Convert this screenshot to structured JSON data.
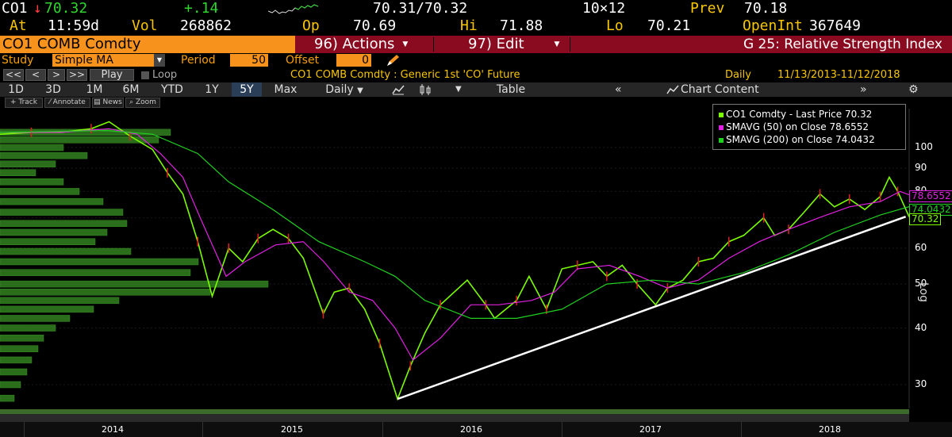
{
  "quote": {
    "ticker": "CO1",
    "arrow": "↓",
    "last": "70.32",
    "change": "+.14",
    "bid_ask": "70.31/70.32",
    "size": "10×12",
    "prev_label": "Prev",
    "prev": "70.18",
    "at_label": "At",
    "time": "11:59d",
    "vol_label": "Vol",
    "vol": "268862",
    "op_label": "Op",
    "op": "70.69",
    "hi_label": "Hi",
    "hi": "71.88",
    "lo_label": "Lo",
    "lo": "70.21",
    "oi_label": "OpenInt",
    "oi": "367649"
  },
  "titlebar": {
    "security": "CO1 COMB Comdty",
    "actions": "96) Actions",
    "edit": "97) Edit",
    "function_title": "G 25: Relative Strength Index"
  },
  "study": {
    "study_label": "Study",
    "study_value": "Simple MA",
    "period_label": "Period",
    "period_value": "50",
    "offset_label": "Offset",
    "offset_value": "0"
  },
  "nav": {
    "btn_first": "<<",
    "btn_prev": "<",
    "btn_next": ">",
    "btn_last": ">>",
    "play": "Play",
    "loop": "Loop",
    "description": "CO1 COMB Comdty : Generic 1st 'CO' Future",
    "frequency": "Daily",
    "date_range": "11/13/2013-11/12/2018"
  },
  "range": {
    "buttons": [
      "1D",
      "3D",
      "1M",
      "6M",
      "YTD",
      "1Y",
      "5Y",
      "Max"
    ],
    "active": "5Y",
    "period_select": "Daily",
    "table": "Table",
    "chart_content": "Chart Content"
  },
  "tools": {
    "track": "Track",
    "annotate": "Annotate",
    "news": "News",
    "zoom": "Zoom"
  },
  "legend": {
    "items": [
      {
        "label": "CO1 Comdty - Last Price 70.32",
        "color": "#7cfc00"
      },
      {
        "label": "SMAVG (50)  on Close    78.6552",
        "color": "#e020e0"
      },
      {
        "label": "SMAVG (200)  on Close  74.0432",
        "color": "#20d020"
      }
    ]
  },
  "axis": {
    "y_scale_label": "Log",
    "x_years": [
      "2014",
      "2015",
      "2016",
      "2017",
      "2018"
    ]
  },
  "chart_data": {
    "type": "line",
    "title": "",
    "xlabel": "",
    "ylabel": "Log",
    "y_scale": "log",
    "ylim": [
      25,
      115
    ],
    "y_ticks": [
      30,
      40,
      50,
      60,
      70,
      80,
      90,
      100
    ],
    "x_start": "2013-11-13",
    "x_end": "2018-11-12",
    "flags": [
      {
        "label": "78.6552",
        "value": 78.6552,
        "color": "#e020e0"
      },
      {
        "label": "74.0432",
        "value": 74.0432,
        "color": "#20d020"
      },
      {
        "label": "70.32",
        "value": 70.32,
        "color": "#7cfc00"
      }
    ],
    "series": [
      {
        "name": "CO1 Comdty - Last Price",
        "color": "#7cfc00",
        "x": [
          "2013-11-13",
          "2014-01-15",
          "2014-03-15",
          "2014-05-15",
          "2014-06-20",
          "2014-08-01",
          "2014-09-15",
          "2014-10-15",
          "2014-11-15",
          "2014-12-15",
          "2015-01-13",
          "2015-02-15",
          "2015-03-15",
          "2015-04-15",
          "2015-05-15",
          "2015-06-15",
          "2015-07-15",
          "2015-08-24",
          "2015-09-15",
          "2015-10-15",
          "2015-11-15",
          "2015-12-15",
          "2016-01-20",
          "2016-02-15",
          "2016-03-15",
          "2016-04-15",
          "2016-06-08",
          "2016-07-15",
          "2016-08-02",
          "2016-09-15",
          "2016-10-10",
          "2016-11-14",
          "2016-12-15",
          "2017-01-15",
          "2017-02-15",
          "2017-03-15",
          "2017-04-15",
          "2017-05-15",
          "2017-06-21",
          "2017-07-15",
          "2017-08-15",
          "2017-09-15",
          "2017-10-15",
          "2017-11-15",
          "2017-12-15",
          "2018-01-24",
          "2018-02-15",
          "2018-03-15",
          "2018-04-15",
          "2018-05-17",
          "2018-06-15",
          "2018-07-15",
          "2018-08-15",
          "2018-09-15",
          "2018-10-03",
          "2018-10-20",
          "2018-11-12"
        ],
        "values": [
          107,
          108,
          108,
          110,
          114,
          106,
          99,
          88,
          79,
          62,
          47,
          60,
          56,
          63,
          66,
          63,
          57,
          43,
          48,
          49,
          44,
          37,
          27.9,
          33,
          39,
          45,
          51,
          45,
          42,
          46,
          52,
          44,
          54,
          55,
          56,
          52,
          55,
          50,
          45,
          49,
          51,
          56,
          57,
          62,
          64,
          70,
          64,
          66,
          72,
          79,
          74,
          77,
          73,
          78,
          86,
          80,
          70.32
        ]
      },
      {
        "name": "SMAVG (50) on Close",
        "color": "#e020e0",
        "x": [
          "2013-11-13",
          "2014-03-15",
          "2014-06-20",
          "2014-08-15",
          "2014-10-01",
          "2014-11-15",
          "2014-12-20",
          "2015-02-10",
          "2015-03-20",
          "2015-05-20",
          "2015-07-15",
          "2015-08-25",
          "2015-10-15",
          "2015-12-01",
          "2016-01-15",
          "2016-02-20",
          "2016-04-15",
          "2016-06-15",
          "2016-08-10",
          "2016-10-15",
          "2016-11-30",
          "2017-01-15",
          "2017-03-20",
          "2017-05-20",
          "2017-07-15",
          "2017-09-15",
          "2017-11-15",
          "2018-01-15",
          "2018-03-15",
          "2018-05-15",
          "2018-07-15",
          "2018-09-15",
          "2018-10-25",
          "2018-11-12"
        ],
        "values": [
          108,
          108,
          110,
          107,
          97,
          86,
          70,
          52,
          56,
          61,
          62,
          56,
          48,
          46,
          40,
          34,
          38,
          45,
          45,
          46,
          48,
          54,
          55,
          52,
          49,
          51,
          57,
          62,
          66,
          70,
          74,
          76,
          80,
          78.6552
        ]
      },
      {
        "name": "SMAVG (200) on Close",
        "color": "#20d020",
        "x": [
          "2013-11-13",
          "2014-06-15",
          "2014-09-15",
          "2014-12-15",
          "2015-02-15",
          "2015-05-15",
          "2015-08-15",
          "2015-11-15",
          "2016-01-15",
          "2016-03-15",
          "2016-06-15",
          "2016-09-15",
          "2016-12-15",
          "2017-03-15",
          "2017-06-15",
          "2017-09-15",
          "2017-12-15",
          "2018-03-15",
          "2018-06-15",
          "2018-09-15",
          "2018-11-12"
        ],
        "values": [
          108,
          109,
          107,
          97,
          84,
          73,
          62,
          56,
          52,
          46,
          42,
          42,
          44,
          50,
          51,
          50,
          53,
          58,
          65,
          71,
          74.0432
        ]
      },
      {
        "name": "Trend line",
        "color": "#ffffff",
        "x": [
          "2016-01-20",
          "2018-11-05"
        ],
        "values": [
          27.9,
          70.4
        ]
      }
    ],
    "volume_profile_note": "horizontal volume-at-price histogram on left"
  }
}
